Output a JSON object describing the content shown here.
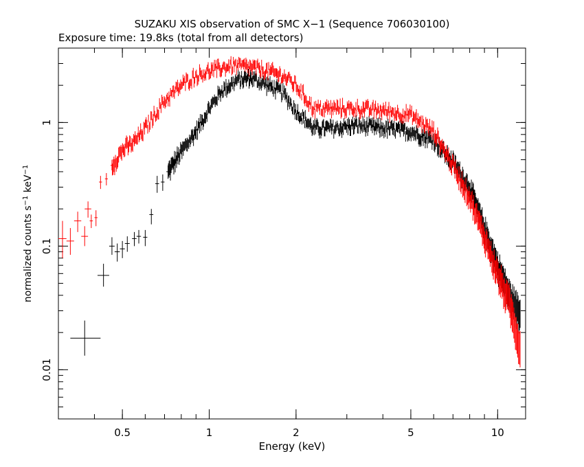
{
  "chart_data": {
    "type": "scatter",
    "title": "SUZAKU XIS observation of SMC X−1 (Sequence 706030100)",
    "subtitle": "Exposure time: 19.8ks (total from all detectors)",
    "xlabel": "Energy (keV)",
    "ylabel": {
      "parts": [
        {
          "text": "normalized counts s",
          "sup": false
        },
        {
          "text": "−1",
          "sup": true
        },
        {
          "text": " keV",
          "sup": false
        },
        {
          "text": "−1",
          "sup": true
        }
      ]
    },
    "xscale": "log",
    "yscale": "log",
    "xlim": [
      0.3,
      12.5
    ],
    "ylim": [
      0.004,
      4.0
    ],
    "xticks": [
      {
        "value": 0.5,
        "label": "0.5"
      },
      {
        "value": 1,
        "label": "1"
      },
      {
        "value": 2,
        "label": "2"
      },
      {
        "value": 5,
        "label": "5"
      },
      {
        "value": 10,
        "label": "10"
      }
    ],
    "yticks": [
      {
        "value": 0.01,
        "label": "0.01"
      },
      {
        "value": 0.1,
        "label": "0.1"
      },
      {
        "value": 1,
        "label": "1"
      }
    ],
    "grid": false,
    "legend": "none",
    "series": [
      {
        "color": "#000000",
        "points": [
          {
            "x": 0.37,
            "y": 0.018,
            "xerr": [
              0.33,
              0.42
            ],
            "yerr": [
              0.013,
              0.025
            ]
          },
          {
            "x": 0.43,
            "y": 0.058,
            "xerr": [
              0.41,
              0.45
            ],
            "yerr": [
              0.047,
              0.072
            ]
          },
          {
            "x": 0.46,
            "y": 0.1,
            "xerr": [
              0.45,
              0.47
            ],
            "yerr": [
              0.085,
              0.118
            ]
          },
          {
            "x": 0.48,
            "y": 0.09,
            "xerr": [
              0.47,
              0.49
            ],
            "yerr": [
              0.075,
              0.105
            ]
          },
          {
            "x": 0.5,
            "y": 0.095,
            "xerr": [
              0.49,
              0.51
            ],
            "yerr": [
              0.08,
              0.11
            ]
          },
          {
            "x": 0.52,
            "y": 0.105,
            "xerr": [
              0.51,
              0.53
            ],
            "yerr": [
              0.09,
              0.12
            ]
          },
          {
            "x": 0.55,
            "y": 0.115,
            "xerr": [
              0.54,
              0.56
            ],
            "yerr": [
              0.1,
              0.13
            ]
          },
          {
            "x": 0.57,
            "y": 0.12,
            "xerr": [
              0.56,
              0.58
            ],
            "yerr": [
              0.105,
              0.135
            ]
          },
          {
            "x": 0.6,
            "y": 0.118,
            "xerr": [
              0.59,
              0.61
            ],
            "yerr": [
              0.1,
              0.135
            ]
          },
          {
            "x": 0.63,
            "y": 0.18,
            "xerr": [
              0.62,
              0.64
            ],
            "yerr": [
              0.15,
              0.2
            ]
          },
          {
            "x": 0.66,
            "y": 0.32,
            "xerr": [
              0.65,
              0.67
            ],
            "yerr": [
              0.27,
              0.37
            ]
          },
          {
            "x": 0.69,
            "y": 0.33,
            "xerr": [
              0.68,
              0.7
            ],
            "yerr": [
              0.28,
              0.38
            ]
          },
          {
            "x": 0.72,
            "y": 0.4,
            "xerr": [
              0.71,
              0.73
            ],
            "yerr": [
              0.35,
              0.45
            ]
          }
        ],
        "curve": [
          [
            0.72,
            0.4
          ],
          [
            0.8,
            0.58
          ],
          [
            0.9,
            0.85
          ],
          [
            1.0,
            1.3
          ],
          [
            1.1,
            1.8
          ],
          [
            1.25,
            2.2
          ],
          [
            1.4,
            2.3
          ],
          [
            1.6,
            2.0
          ],
          [
            1.8,
            1.75
          ],
          [
            2.0,
            1.25
          ],
          [
            2.3,
            0.9
          ],
          [
            2.7,
            0.9
          ],
          [
            3.2,
            0.95
          ],
          [
            4.0,
            0.9
          ],
          [
            5.0,
            0.85
          ],
          [
            6.0,
            0.72
          ],
          [
            7.0,
            0.48
          ],
          [
            8.0,
            0.3
          ],
          [
            9.0,
            0.14
          ],
          [
            10.0,
            0.07
          ],
          [
            11.0,
            0.04
          ],
          [
            12.0,
            0.028
          ]
        ]
      },
      {
        "color": "#ff0000",
        "points": [
          {
            "x": 0.31,
            "y": 0.115,
            "xerr": [
              0.3,
              0.32
            ],
            "yerr": [
              0.08,
              0.16
            ]
          },
          {
            "x": 0.33,
            "y": 0.11,
            "xerr": [
              0.32,
              0.34
            ],
            "yerr": [
              0.085,
              0.14
            ]
          },
          {
            "x": 0.35,
            "y": 0.16,
            "xerr": [
              0.34,
              0.36
            ],
            "yerr": [
              0.13,
              0.19
            ]
          },
          {
            "x": 0.37,
            "y": 0.12,
            "xerr": [
              0.36,
              0.38
            ],
            "yerr": [
              0.1,
              0.145
            ]
          },
          {
            "x": 0.38,
            "y": 0.2,
            "xerr": [
              0.37,
              0.39
            ],
            "yerr": [
              0.17,
              0.23
            ]
          },
          {
            "x": 0.39,
            "y": 0.16,
            "xerr": [
              0.385,
              0.395
            ],
            "yerr": [
              0.14,
              0.18
            ]
          },
          {
            "x": 0.405,
            "y": 0.17,
            "xerr": [
              0.4,
              0.41
            ],
            "yerr": [
              0.145,
              0.195
            ]
          },
          {
            "x": 0.42,
            "y": 0.33,
            "xerr": [
              0.415,
              0.425
            ],
            "yerr": [
              0.29,
              0.37
            ]
          },
          {
            "x": 0.44,
            "y": 0.35,
            "xerr": [
              0.435,
              0.445
            ],
            "yerr": [
              0.31,
              0.39
            ]
          },
          {
            "x": 0.46,
            "y": 0.45,
            "xerr": [
              0.455,
              0.465
            ],
            "yerr": [
              0.41,
              0.5
            ]
          }
        ],
        "curve": [
          [
            0.46,
            0.45
          ],
          [
            0.5,
            0.6
          ],
          [
            0.55,
            0.7
          ],
          [
            0.6,
            0.9
          ],
          [
            0.7,
            1.5
          ],
          [
            0.8,
            2.0
          ],
          [
            0.9,
            2.4
          ],
          [
            1.0,
            2.6
          ],
          [
            1.2,
            2.9
          ],
          [
            1.4,
            2.8
          ],
          [
            1.6,
            2.6
          ],
          [
            1.8,
            2.4
          ],
          [
            2.0,
            2.0
          ],
          [
            2.3,
            1.3
          ],
          [
            2.7,
            1.3
          ],
          [
            3.2,
            1.3
          ],
          [
            4.0,
            1.25
          ],
          [
            5.0,
            1.15
          ],
          [
            6.0,
            0.85
          ],
          [
            7.0,
            0.45
          ],
          [
            8.0,
            0.25
          ],
          [
            9.0,
            0.12
          ],
          [
            10.0,
            0.06
          ],
          [
            11.0,
            0.035
          ],
          [
            12.0,
            0.015
          ]
        ]
      }
    ]
  }
}
